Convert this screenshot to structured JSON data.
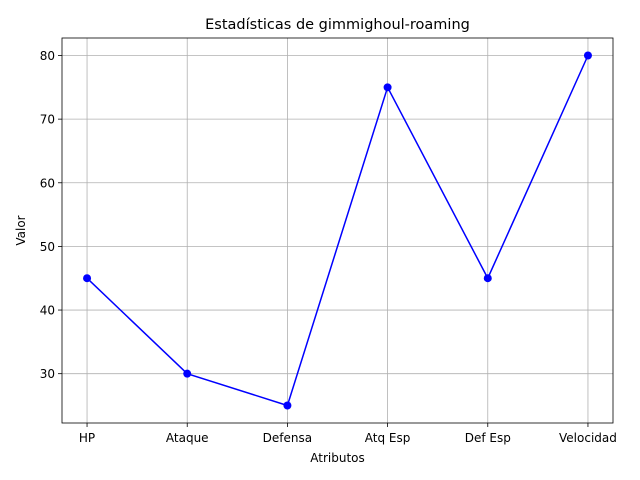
{
  "chart_data": {
    "type": "line",
    "title": "Estadísticas de gimmighoul-roaming",
    "xlabel": "Atributos",
    "ylabel": "Valor",
    "categories": [
      "HP",
      "Ataque",
      "Defensa",
      "Atq Esp",
      "Def Esp",
      "Velocidad"
    ],
    "values": [
      45,
      30,
      25,
      75,
      45,
      80
    ],
    "ylim": [
      22.25,
      82.75
    ],
    "yticks": [
      30,
      40,
      50,
      60,
      70,
      80
    ],
    "grid": true,
    "line_color": "#0000ff",
    "marker": "circle"
  }
}
